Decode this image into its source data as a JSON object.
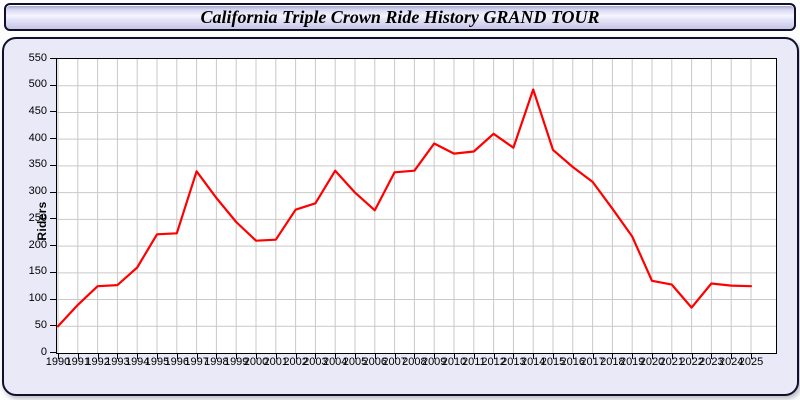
{
  "header": {
    "title": "California Triple Crown Ride History GRAND TOUR"
  },
  "chart_data": {
    "type": "line",
    "title": "California Triple Crown Ride History GRAND TOUR",
    "xlabel": "",
    "ylabel": "Riders",
    "x": [
      1990,
      1991,
      1992,
      1993,
      1994,
      1995,
      1996,
      1997,
      1998,
      1999,
      2000,
      2001,
      2002,
      2003,
      2004,
      2005,
      2006,
      2007,
      2008,
      2009,
      2010,
      2011,
      2012,
      2013,
      2014,
      2015,
      2016,
      2017,
      2018,
      2019,
      2020,
      2021,
      2022,
      2023,
      2024,
      2025
    ],
    "values": [
      50,
      90,
      125,
      127,
      160,
      222,
      224,
      340,
      290,
      245,
      210,
      212,
      268,
      280,
      341,
      300,
      267,
      338,
      341,
      392,
      373,
      377,
      410,
      384,
      493,
      380,
      348,
      320,
      270,
      218,
      135,
      128,
      85,
      130,
      126,
      125
    ],
    "ylim": [
      0,
      550
    ],
    "ytick_step": 50,
    "xtick_step": 1,
    "grid": true,
    "legend": "none",
    "line_color": "#ff0000",
    "grid_color": "#c9c9c9"
  },
  "colors": {
    "panel_background": "#e9e9f8",
    "panel_border": "#10102c",
    "plot_background": "#ffffff",
    "text": "#000000"
  }
}
